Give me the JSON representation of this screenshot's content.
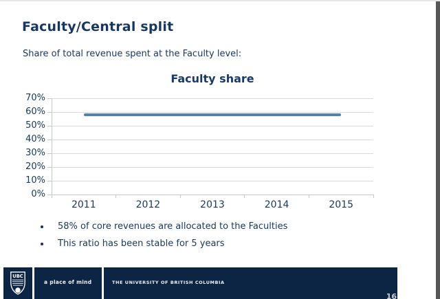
{
  "slide": {
    "title": "Faculty/Central split",
    "subtitle": "Share of total revenue spent at the Faculty level:",
    "bullets": [
      "58% of core revenues are allocated to the Faculties",
      "This ratio has been stable for 5 years"
    ],
    "page_number": "16"
  },
  "chart_data": {
    "type": "line",
    "title": "Faculty share",
    "categories": [
      "2011",
      "2012",
      "2013",
      "2014",
      "2015"
    ],
    "series": [
      {
        "name": "Faculty share",
        "values": [
          58,
          58,
          58,
          58,
          58
        ]
      }
    ],
    "xlabel": "",
    "ylabel": "",
    "ylim": [
      0,
      70
    ],
    "ytick_step": 10,
    "ytick_labels": [
      "0%",
      "10%",
      "20%",
      "30%",
      "40%",
      "50%",
      "60%",
      "70%"
    ],
    "grid": true,
    "legend": "none",
    "line_color": "#4F81BD"
  },
  "footer": {
    "logo_icon": "ubc-crest-logo",
    "tagline": "a place of mind",
    "university": "THE UNIVERSITY OF BRITISH COLUMBIA"
  },
  "colors": {
    "text_navy": "#17375E",
    "footer_navy": "#0D2545",
    "line_blue": "#4F81BD",
    "gridline_gray": "#D9D9D9",
    "page_number_gray": "#C7CDD4"
  }
}
